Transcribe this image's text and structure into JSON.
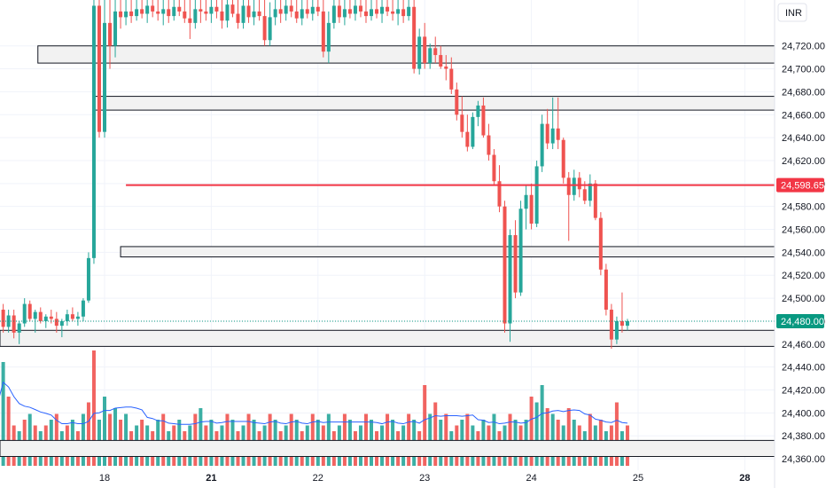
{
  "currency_label": "INR",
  "colors": {
    "up": "#26a69a",
    "down": "#ef5350",
    "grid": "#f0f3fa",
    "zone_fill": "#f2f2f2",
    "zone_border": "#131722",
    "price_line": "#f23645",
    "current_line": "#089981",
    "ma_line": "#2962ff"
  },
  "chart_data": {
    "type": "candlestick",
    "ylim": [
      24350,
      24760
    ],
    "y_ticks": [
      {
        "value": 24720,
        "label": "24,720.00"
      },
      {
        "value": 24700,
        "label": "24,700.00"
      },
      {
        "value": 24680,
        "label": "24,680.00"
      },
      {
        "value": 24660,
        "label": "24,660.00"
      },
      {
        "value": 24640,
        "label": "24,640.00"
      },
      {
        "value": 24620,
        "label": "24,620.00"
      },
      {
        "value": 24600,
        "label": "24,600.00"
      },
      {
        "value": 24580,
        "label": "24,580.00"
      },
      {
        "value": 24560,
        "label": "24,560.00"
      },
      {
        "value": 24540,
        "label": "24,540.00"
      },
      {
        "value": 24520,
        "label": "24,520.00"
      },
      {
        "value": 24500,
        "label": "24,500.00"
      },
      {
        "value": 24480,
        "label": "24,480.00"
      },
      {
        "value": 24460,
        "label": "24,460.00"
      },
      {
        "value": 24440,
        "label": "24,440.00"
      },
      {
        "value": 24420,
        "label": "24,420.00"
      },
      {
        "value": 24400,
        "label": "24,400.00"
      },
      {
        "value": 24380,
        "label": "24,380.00"
      },
      {
        "value": 24360,
        "label": "24,360.00"
      }
    ],
    "x_labels": [
      {
        "label": "18",
        "bold": false,
        "index": 0
      },
      {
        "label": "21",
        "bold": true,
        "index": 20
      },
      {
        "label": "22",
        "bold": false,
        "index": 40
      },
      {
        "label": "23",
        "bold": false,
        "index": 60
      },
      {
        "label": "24",
        "bold": false,
        "index": 80
      },
      {
        "label": "25",
        "bold": false,
        "index": 100
      },
      {
        "label": "28",
        "bold": true,
        "index": 120
      }
    ],
    "x_start_index": -19.5,
    "x_end_index": 125,
    "candle_start_index": -20,
    "price_marker": {
      "value": 24598.65,
      "label": "24,598.65",
      "from_index": 4
    },
    "current_price": {
      "value": 24480.0,
      "label": "24,480.00"
    },
    "zones": [
      {
        "top": 24720,
        "bottom": 24705,
        "from_index": -12.5
      },
      {
        "top": 24676,
        "bottom": 24664,
        "from_index": -2
      },
      {
        "top": 24545,
        "bottom": 24536,
        "from_index": 3
      },
      {
        "top": 24472,
        "bottom": 24458,
        "from_index": -60
      },
      {
        "top": 24376,
        "bottom": 24362,
        "from_index": -60
      }
    ],
    "candles": [
      [
        24500,
        24505,
        24480,
        24490
      ],
      [
        24490,
        24495,
        24470,
        24475
      ],
      [
        24475,
        24490,
        24470,
        24485
      ],
      [
        24485,
        24490,
        24465,
        24470
      ],
      [
        24470,
        24480,
        24460,
        24478
      ],
      [
        24478,
        24500,
        24475,
        24495
      ],
      [
        24495,
        24498,
        24480,
        24482
      ],
      [
        24482,
        24490,
        24470,
        24488
      ],
      [
        24488,
        24492,
        24478,
        24480
      ],
      [
        24480,
        24486,
        24474,
        24484
      ],
      [
        24484,
        24490,
        24478,
        24482
      ],
      [
        24482,
        24488,
        24470,
        24476
      ],
      [
        24476,
        24482,
        24466,
        24480
      ],
      [
        24480,
        24490,
        24476,
        24486
      ],
      [
        24486,
        24492,
        24480,
        24482
      ],
      [
        24482,
        24488,
        24476,
        24484
      ],
      [
        24484,
        24500,
        24480,
        24498
      ],
      [
        24498,
        24540,
        24496,
        24535
      ],
      [
        24535,
        24760,
        24530,
        24755
      ],
      [
        24755,
        24760,
        24640,
        24645
      ],
      [
        24645,
        24760,
        24640,
        24740
      ],
      [
        24740,
        24760,
        24700,
        24720
      ],
      [
        24720,
        24760,
        24710,
        24750
      ],
      [
        24750,
        24760,
        24735,
        24745
      ],
      [
        24745,
        24760,
        24738,
        24750
      ],
      [
        24750,
        24760,
        24740,
        24746
      ],
      [
        24746,
        24760,
        24742,
        24752
      ],
      [
        24752,
        24760,
        24744,
        24748
      ],
      [
        24748,
        24760,
        24740,
        24755
      ],
      [
        24755,
        24760,
        24745,
        24750
      ],
      [
        24750,
        24760,
        24742,
        24748
      ],
      [
        24748,
        24760,
        24738,
        24752
      ],
      [
        24752,
        24760,
        24740,
        24746
      ],
      [
        24746,
        24760,
        24742,
        24754
      ],
      [
        24754,
        24760,
        24746,
        24750
      ],
      [
        24750,
        24760,
        24740,
        24744
      ],
      [
        24744,
        24760,
        24726,
        24740
      ],
      [
        24740,
        24760,
        24735,
        24752
      ],
      [
        24752,
        24760,
        24740,
        24750
      ],
      [
        24750,
        24760,
        24742,
        24748
      ],
      [
        24748,
        24760,
        24740,
        24754
      ],
      [
        24754,
        24760,
        24744,
        24750
      ],
      [
        24750,
        24760,
        24735,
        24742
      ],
      [
        24742,
        24760,
        24736,
        24756
      ],
      [
        24756,
        24760,
        24745,
        24748
      ],
      [
        24748,
        24760,
        24735,
        24740
      ],
      [
        24740,
        24760,
        24735,
        24755
      ],
      [
        24755,
        24760,
        24740,
        24745
      ],
      [
        24745,
        24760,
        24738,
        24750
      ],
      [
        24750,
        24760,
        24742,
        24746
      ],
      [
        24746,
        24760,
        24720,
        24725
      ],
      [
        24725,
        24758,
        24720,
        24745
      ],
      [
        24745,
        24760,
        24738,
        24752
      ],
      [
        24752,
        24760,
        24740,
        24748
      ],
      [
        24748,
        24760,
        24742,
        24755
      ],
      [
        24755,
        24760,
        24745,
        24750
      ],
      [
        24750,
        24760,
        24740,
        24744
      ],
      [
        24744,
        24760,
        24738,
        24752
      ],
      [
        24752,
        24760,
        24744,
        24748
      ],
      [
        24748,
        24760,
        24742,
        24754
      ],
      [
        24754,
        24760,
        24746,
        24750
      ],
      [
        24750,
        24760,
        24710,
        24715
      ],
      [
        24715,
        24750,
        24705,
        24740
      ],
      [
        24740,
        24760,
        24735,
        24755
      ],
      [
        24755,
        24760,
        24740,
        24745
      ],
      [
        24745,
        24760,
        24738,
        24752
      ],
      [
        24752,
        24760,
        24744,
        24748
      ],
      [
        24748,
        24760,
        24742,
        24755
      ],
      [
        24755,
        24760,
        24745,
        24750
      ],
      [
        24750,
        24760,
        24740,
        24746
      ],
      [
        24746,
        24760,
        24742,
        24752
      ],
      [
        24752,
        24760,
        24744,
        24748
      ],
      [
        24748,
        24760,
        24740,
        24754
      ],
      [
        24754,
        24760,
        24746,
        24750
      ],
      [
        24750,
        24760,
        24742,
        24748
      ],
      [
        24748,
        24760,
        24738,
        24752
      ],
      [
        24752,
        24760,
        24740,
        24746
      ],
      [
        24746,
        24760,
        24742,
        24754
      ],
      [
        24754,
        24760,
        24696,
        24700
      ],
      [
        24700,
        24735,
        24695,
        24728
      ],
      [
        24728,
        24740,
        24700,
        24705
      ],
      [
        24705,
        24722,
        24700,
        24718
      ],
      [
        24718,
        24728,
        24705,
        24712
      ],
      [
        24712,
        24720,
        24700,
        24702
      ],
      [
        24702,
        24712,
        24690,
        24700
      ],
      [
        24700,
        24710,
        24678,
        24682
      ],
      [
        24682,
        24688,
        24655,
        24660
      ],
      [
        24660,
        24676,
        24640,
        24645
      ],
      [
        24645,
        24660,
        24628,
        24632
      ],
      [
        24632,
        24662,
        24630,
        24658
      ],
      [
        24658,
        24672,
        24650,
        24668
      ],
      [
        24668,
        24675,
        24640,
        24642
      ],
      [
        24642,
        24652,
        24620,
        24625
      ],
      [
        24625,
        24630,
        24598,
        24602
      ],
      [
        24602,
        24616,
        24575,
        24580
      ],
      [
        24580,
        24585,
        24470,
        24478
      ],
      [
        24478,
        24560,
        24462,
        24555
      ],
      [
        24555,
        24568,
        24500,
        24505
      ],
      [
        24505,
        24585,
        24502,
        24578
      ],
      [
        24578,
        24598,
        24560,
        24590
      ],
      [
        24590,
        24600,
        24560,
        24565
      ],
      [
        24565,
        24620,
        24562,
        24615
      ],
      [
        24615,
        24660,
        24610,
        24652
      ],
      [
        24652,
        24665,
        24630,
        24635
      ],
      [
        24635,
        24675,
        24630,
        24648
      ],
      [
        24648,
        24675,
        24630,
        24638
      ],
      [
        24638,
        24640,
        24600,
        24605
      ],
      [
        24605,
        24610,
        24550,
        24590
      ],
      [
        24590,
        24612,
        24585,
        24605
      ],
      [
        24605,
        24610,
        24588,
        24595
      ],
      [
        24595,
        24602,
        24582,
        24585
      ],
      [
        24585,
        24608,
        24580,
        24600
      ],
      [
        24600,
        24603,
        24568,
        24570
      ],
      [
        24570,
        24575,
        24520,
        24525
      ],
      [
        24525,
        24530,
        24485,
        24490
      ],
      [
        24490,
        24495,
        24456,
        24464
      ],
      [
        24464,
        24484,
        24460,
        24480
      ],
      [
        24480,
        24505,
        24470,
        24476
      ],
      [
        24476,
        24482,
        24472,
        24480
      ]
    ],
    "volumes": [
      [
        0.55,
        0
      ],
      [
        0.9,
        1
      ],
      [
        0.6,
        0
      ],
      [
        0.35,
        0
      ],
      [
        0.3,
        1
      ],
      [
        0.4,
        0
      ],
      [
        0.45,
        1
      ],
      [
        0.35,
        0
      ],
      [
        0.3,
        1
      ],
      [
        0.35,
        0
      ],
      [
        0.4,
        1
      ],
      [
        0.45,
        0
      ],
      [
        0.3,
        1
      ],
      [
        0.35,
        0
      ],
      [
        0.4,
        1
      ],
      [
        0.3,
        0
      ],
      [
        0.45,
        1
      ],
      [
        0.55,
        0
      ],
      [
        1.0,
        0
      ],
      [
        0.4,
        1
      ],
      [
        0.6,
        1
      ],
      [
        0.45,
        0
      ],
      [
        0.5,
        1
      ],
      [
        0.4,
        0
      ],
      [
        0.45,
        1
      ],
      [
        0.3,
        0
      ],
      [
        0.35,
        1
      ],
      [
        0.4,
        0
      ],
      [
        0.35,
        1
      ],
      [
        0.3,
        0
      ],
      [
        0.4,
        1
      ],
      [
        0.45,
        0
      ],
      [
        0.3,
        1
      ],
      [
        0.35,
        0
      ],
      [
        0.4,
        1
      ],
      [
        0.3,
        0
      ],
      [
        0.35,
        1
      ],
      [
        0.45,
        0
      ],
      [
        0.5,
        1
      ],
      [
        0.35,
        0
      ],
      [
        0.4,
        1
      ],
      [
        0.3,
        0
      ],
      [
        0.35,
        1
      ],
      [
        0.45,
        0
      ],
      [
        0.4,
        1
      ],
      [
        0.3,
        0
      ],
      [
        0.35,
        1
      ],
      [
        0.45,
        0
      ],
      [
        0.4,
        1
      ],
      [
        0.3,
        0
      ],
      [
        0.35,
        1
      ],
      [
        0.45,
        0
      ],
      [
        0.4,
        1
      ],
      [
        0.3,
        0
      ],
      [
        0.35,
        1
      ],
      [
        0.45,
        0
      ],
      [
        0.4,
        1
      ],
      [
        0.3,
        0
      ],
      [
        0.35,
        1
      ],
      [
        0.45,
        0
      ],
      [
        0.4,
        1
      ],
      [
        0.35,
        0
      ],
      [
        0.45,
        1
      ],
      [
        0.3,
        0
      ],
      [
        0.35,
        1
      ],
      [
        0.45,
        0
      ],
      [
        0.4,
        1
      ],
      [
        0.3,
        0
      ],
      [
        0.35,
        1
      ],
      [
        0.45,
        0
      ],
      [
        0.4,
        1
      ],
      [
        0.3,
        0
      ],
      [
        0.35,
        1
      ],
      [
        0.45,
        0
      ],
      [
        0.4,
        1
      ],
      [
        0.3,
        0
      ],
      [
        0.35,
        1
      ],
      [
        0.45,
        0
      ],
      [
        0.4,
        1
      ],
      [
        0.3,
        0
      ],
      [
        0.7,
        0
      ],
      [
        0.45,
        1
      ],
      [
        0.55,
        0
      ],
      [
        0.4,
        1
      ],
      [
        0.45,
        0
      ],
      [
        0.3,
        1
      ],
      [
        0.35,
        0
      ],
      [
        0.4,
        1
      ],
      [
        0.45,
        0
      ],
      [
        0.35,
        1
      ],
      [
        0.3,
        0
      ],
      [
        0.4,
        1
      ],
      [
        0.35,
        0
      ],
      [
        0.45,
        1
      ],
      [
        0.3,
        0
      ],
      [
        0.35,
        1
      ],
      [
        0.45,
        0
      ],
      [
        0.4,
        1
      ],
      [
        0.35,
        0
      ],
      [
        0.4,
        1
      ],
      [
        0.6,
        0
      ],
      [
        0.55,
        1
      ],
      [
        0.7,
        1
      ],
      [
        0.5,
        0
      ],
      [
        0.45,
        1
      ],
      [
        0.4,
        0
      ],
      [
        0.35,
        1
      ],
      [
        0.5,
        0
      ],
      [
        0.4,
        1
      ],
      [
        0.35,
        0
      ],
      [
        0.3,
        1
      ],
      [
        0.45,
        0
      ],
      [
        0.35,
        1
      ],
      [
        0.4,
        0
      ],
      [
        0.3,
        1
      ],
      [
        0.35,
        0
      ],
      [
        0.55,
        0
      ],
      [
        0.3,
        1
      ],
      [
        0.35,
        0
      ],
      [
        0.4,
        1
      ]
    ]
  }
}
